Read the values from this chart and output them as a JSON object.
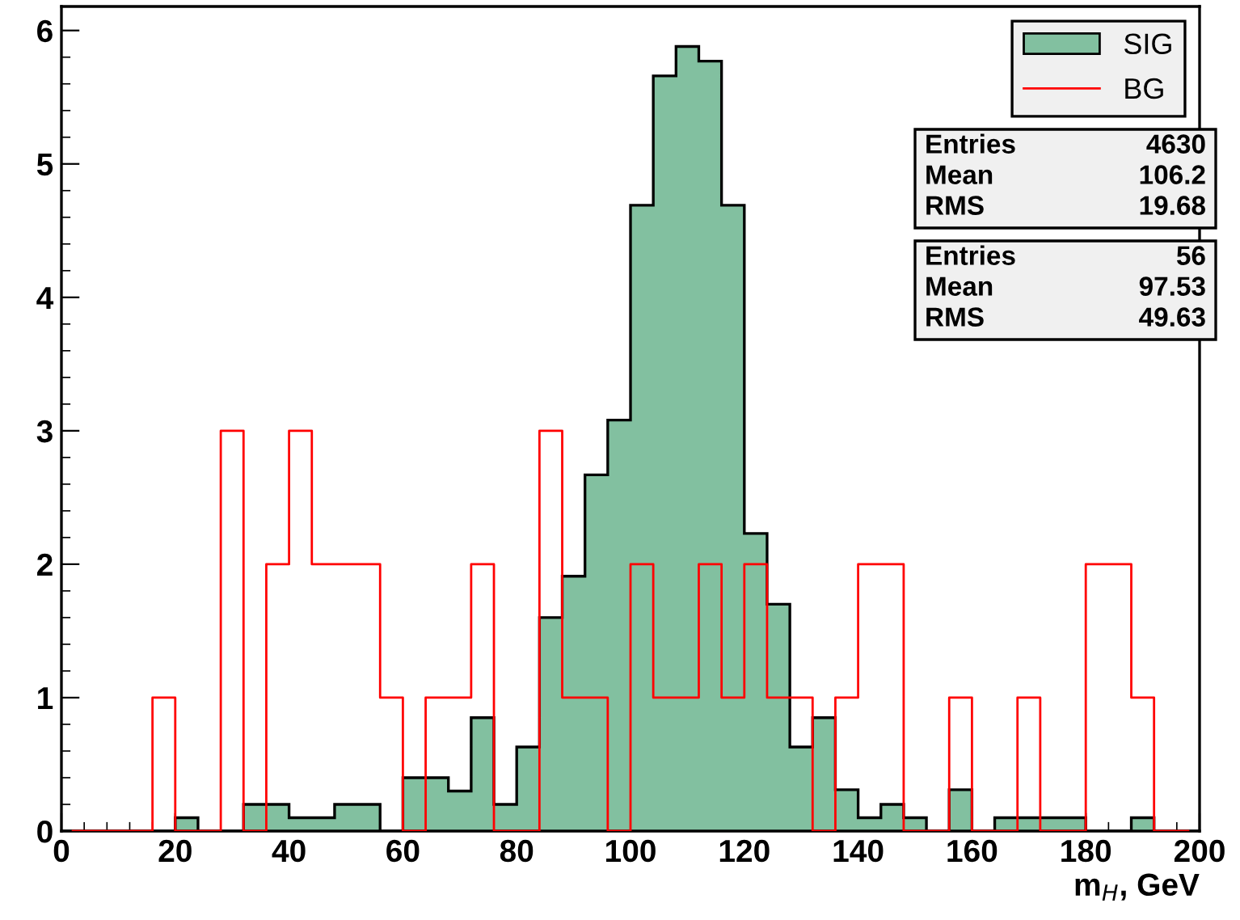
{
  "chart_data": {
    "type": "histogram",
    "xlabel": "m$_{H}$, GeV",
    "bins": [
      0,
      4,
      8,
      12,
      16,
      20,
      24,
      28,
      32,
      36,
      40,
      44,
      48,
      52,
      56,
      60,
      64,
      68,
      72,
      76,
      80,
      84,
      88,
      92,
      96,
      100,
      104,
      108,
      112,
      116,
      120,
      124,
      128,
      132,
      136,
      140,
      144,
      148,
      152,
      156,
      160,
      164,
      168,
      172,
      176,
      180,
      184,
      188,
      192,
      196,
      200
    ],
    "series": [
      {
        "name": "SIG",
        "color": "#82c0a0",
        "values": [
          0,
          0,
          0,
          0,
          0,
          0.1,
          0,
          0,
          0.2,
          0.2,
          0.1,
          0.1,
          0.2,
          0.2,
          0,
          0.4,
          0.4,
          0.3,
          0.85,
          0.2,
          0.63,
          1.6,
          1.91,
          2.67,
          3.08,
          4.69,
          5.66,
          5.88,
          5.77,
          4.69,
          2.23,
          1.7,
          0.63,
          0.85,
          0.31,
          0.1,
          0.2,
          0.1,
          0,
          0.31,
          0,
          0.1,
          0.1,
          0.1,
          0.1,
          0,
          0,
          0.1,
          0,
          0
        ]
      },
      {
        "name": "BG",
        "type": "step",
        "color": "#ff0000",
        "x": [
          2,
          6,
          10,
          14,
          18,
          22,
          26,
          30,
          34,
          38,
          42,
          46,
          50,
          54,
          58,
          62,
          66,
          70,
          74,
          78,
          82,
          86,
          90,
          94,
          98,
          102,
          106,
          110,
          114,
          118,
          122,
          126,
          130,
          134,
          138,
          142,
          146,
          150,
          154,
          158,
          162,
          166,
          170,
          174,
          178,
          182,
          186,
          190,
          194,
          198
        ],
        "values": [
          0,
          0,
          0,
          0,
          1,
          0,
          0,
          3,
          0,
          2,
          3,
          2,
          2,
          2,
          1,
          0,
          1,
          1,
          2,
          0,
          0,
          3,
          1,
          1,
          0,
          2,
          1,
          1,
          2,
          1,
          2,
          1,
          1,
          0,
          1,
          2,
          2,
          0,
          0,
          1,
          0,
          0,
          1,
          0,
          0,
          2,
          2,
          1,
          0,
          0
        ]
      }
    ],
    "xlim": [
      0,
      200
    ],
    "ylim": [
      0,
      6.18
    ],
    "xticks": [
      0,
      {
        "value": 4,
        "label": null
      },
      {
        "value": 8,
        "label": null
      },
      {
        "value": 12,
        "label": null
      },
      {
        "value": 16,
        "label": null
      },
      20,
      {
        "value": 24,
        "label": null
      },
      {
        "value": 28,
        "label": null
      },
      {
        "value": 32,
        "label": null
      },
      {
        "value": 36,
        "label": null
      },
      40,
      {
        "value": 44,
        "label": null
      },
      {
        "value": 48,
        "label": null
      },
      {
        "value": 52,
        "label": null
      },
      {
        "value": 56,
        "label": null
      },
      60,
      {
        "value": 64,
        "label": null
      },
      {
        "value": 68,
        "label": null
      },
      {
        "value": 72,
        "label": null
      },
      {
        "value": 76,
        "label": null
      },
      80,
      {
        "value": 84,
        "label": null
      },
      {
        "value": 88,
        "label": null
      },
      {
        "value": 92,
        "label": null
      },
      {
        "value": 96,
        "label": null
      },
      100,
      {
        "value": 104,
        "label": null
      },
      {
        "value": 108,
        "label": null
      },
      {
        "value": 112,
        "label": null
      },
      {
        "value": 116,
        "label": null
      },
      120,
      {
        "value": 124,
        "label": null
      },
      {
        "value": 128,
        "label": null
      },
      {
        "value": 132,
        "label": null
      },
      {
        "value": 136,
        "label": null
      },
      140,
      {
        "value": 144,
        "label": null
      },
      {
        "value": 148,
        "label": null
      },
      {
        "value": 152,
        "label": null
      },
      {
        "value": 156,
        "label": null
      },
      160,
      {
        "value": 164,
        "label": null
      },
      {
        "value": 168,
        "label": null
      },
      {
        "value": 172,
        "label": null
      },
      {
        "value": 176,
        "label": null
      },
      180,
      {
        "value": 184,
        "label": null
      },
      {
        "value": 188,
        "label": null
      },
      {
        "value": 192,
        "label": null
      },
      {
        "value": 196,
        "label": null
      },
      200
    ],
    "yticks": [
      0,
      {
        "value": 0.2,
        "label": null
      },
      {
        "value": 0.4,
        "label": null
      },
      {
        "value": 0.6,
        "label": null
      },
      {
        "value": 0.8,
        "label": null
      },
      1,
      {
        "value": 1.2,
        "label": null
      },
      {
        "value": 1.4,
        "label": null
      },
      {
        "value": 1.6,
        "label": null
      },
      {
        "value": 1.8,
        "label": null
      },
      2,
      {
        "value": 2.2,
        "label": null
      },
      {
        "value": 2.4,
        "label": null
      },
      {
        "value": 2.6,
        "label": null
      },
      {
        "value": 2.8,
        "label": null
      },
      3,
      {
        "value": 3.2,
        "label": null
      },
      {
        "value": 3.4,
        "label": null
      },
      {
        "value": 3.6,
        "label": null
      },
      {
        "value": 3.8,
        "label": null
      },
      4,
      {
        "value": 4.2,
        "label": null
      },
      {
        "value": 4.4,
        "label": null
      },
      {
        "value": 4.6,
        "label": null
      },
      {
        "value": 4.8,
        "label": null
      },
      5,
      {
        "value": 5.2,
        "label": null
      },
      {
        "value": 5.4,
        "label": null
      },
      {
        "value": 5.6,
        "label": null
      },
      {
        "value": 5.8,
        "label": null
      },
      6,
      {
        "value": 6.18,
        "label": null
      }
    ],
    "legend": "top right",
    "grid": false,
    "annotations": [
      "Entries",
      "4630",
      "Mean",
      "106.2",
      "RMS",
      "19.68",
      "Entries",
      "56",
      "Mean",
      "97.53",
      "RMS",
      "49.63"
    ]
  }
}
